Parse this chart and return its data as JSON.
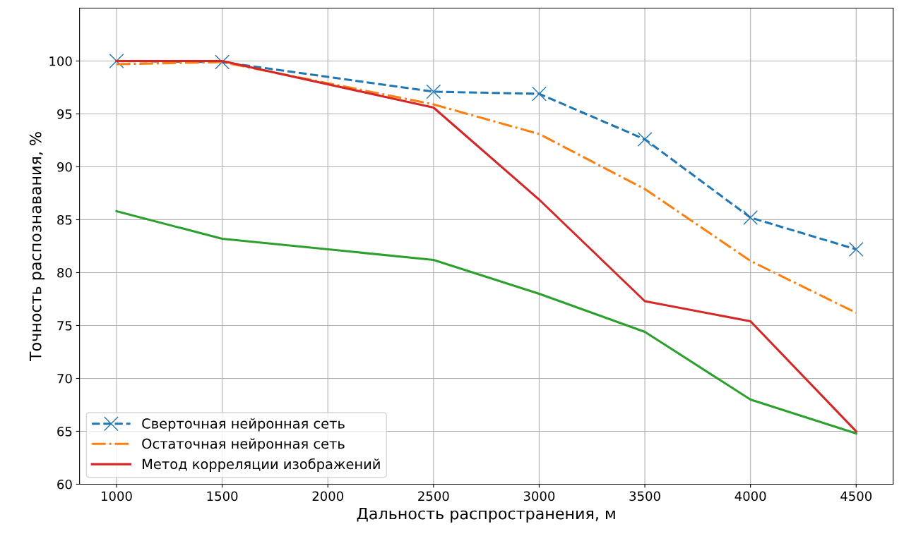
{
  "chart_data": {
    "type": "line",
    "xlabel": "Дальность распространения, м",
    "ylabel": "Точность распознавания, %",
    "x": [
      1000,
      1500,
      2500,
      3000,
      3500,
      4000,
      4500
    ],
    "series": [
      {
        "name": "Сверточная нейронная сеть",
        "color": "#1f77b4",
        "line_style": "dashed",
        "marker": "cross",
        "values": [
          100,
          99.9,
          97.1,
          96.9,
          92.6,
          85.2,
          82.2
        ]
      },
      {
        "name": "Остаточная нейронная сеть",
        "color": "#ff7f0e",
        "line_style": "dashdot",
        "marker": "none",
        "values": [
          99.7,
          99.9,
          95.9,
          93.1,
          87.9,
          81.1,
          76.2
        ]
      },
      {
        "color": "#2ca02c",
        "line_style": "solid",
        "marker": "none",
        "values": [
          85.8,
          83.2,
          81.2,
          78.0,
          74.4,
          68.0,
          64.8
        ]
      },
      {
        "name": "Метод корреляции изображений",
        "color": "#d62728",
        "line_style": "solid",
        "marker": "none",
        "values": [
          100,
          100,
          95.6,
          86.9,
          77.3,
          75.4,
          65.0
        ]
      }
    ],
    "xlim": [
      825,
      4675
    ],
    "xticks": [
      1000,
      1500,
      2000,
      2500,
      3000,
      3500,
      4000,
      4500
    ],
    "ylim": [
      60,
      105
    ],
    "yticks": [
      60,
      65,
      70,
      75,
      80,
      85,
      90,
      95,
      100
    ],
    "grid": true,
    "legend": "bottom left"
  }
}
